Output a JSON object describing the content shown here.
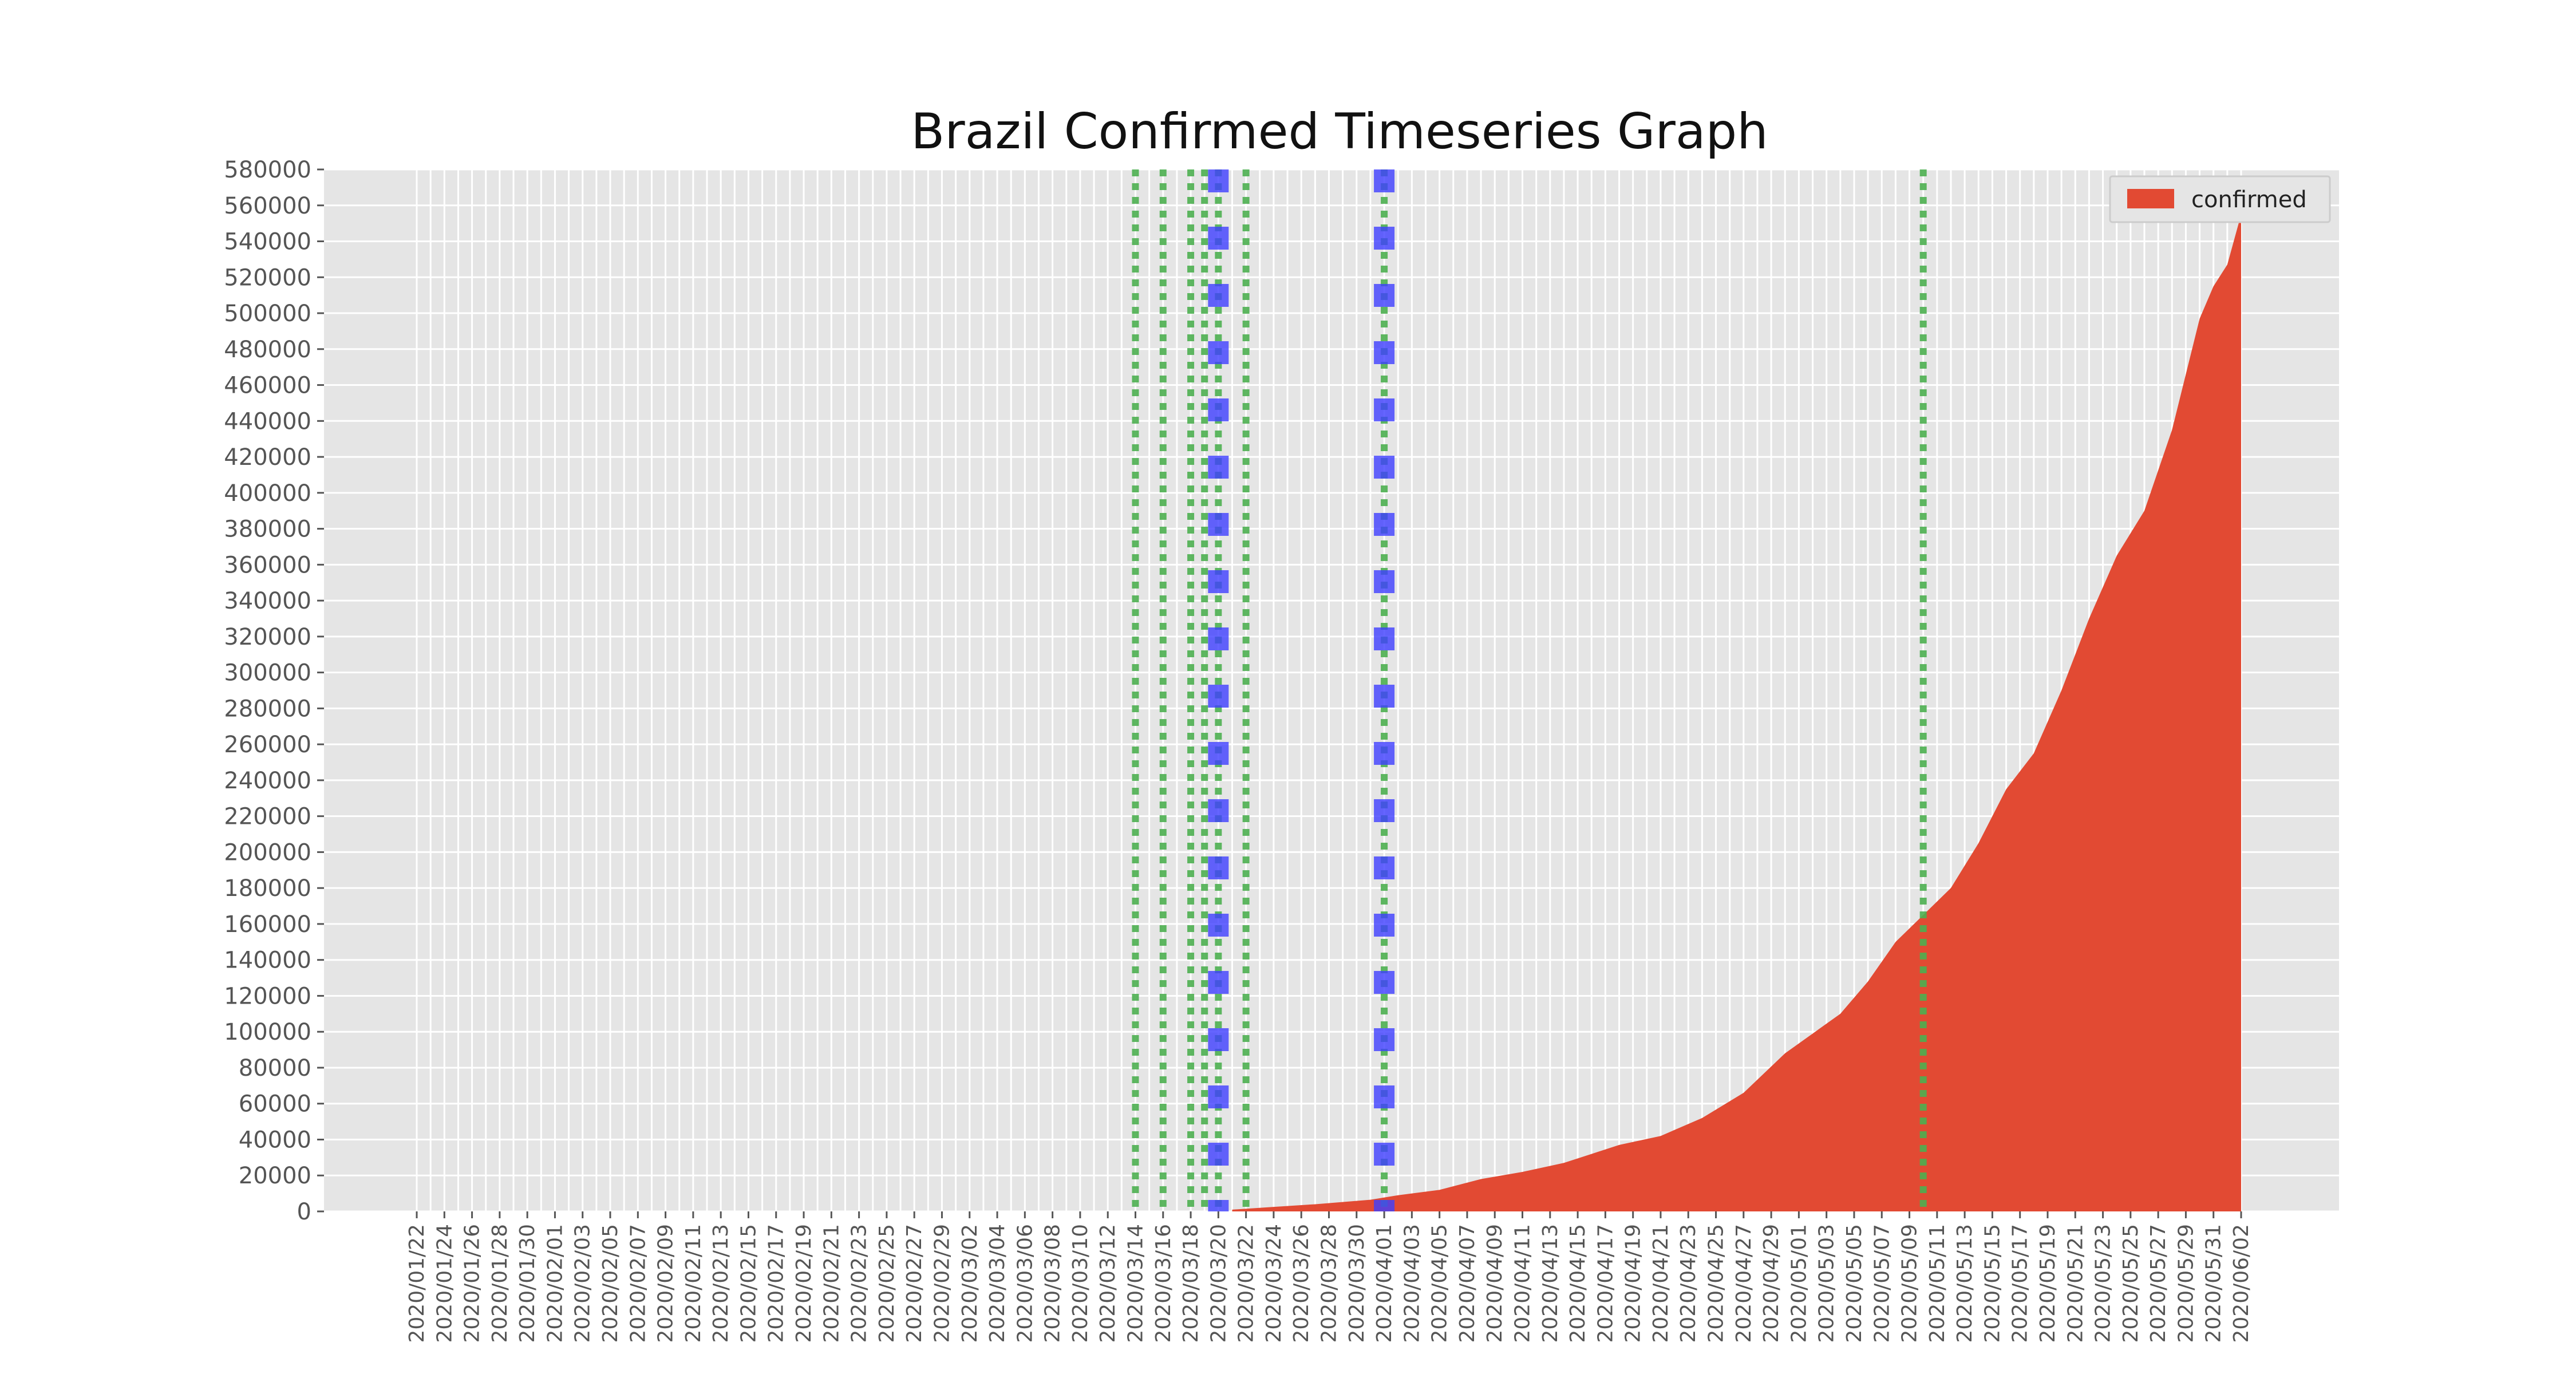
{
  "chart_data": {
    "type": "area",
    "title": "Brazil Confirmed Timeseries Graph",
    "xlabel": "",
    "ylabel": "",
    "ylim": [
      0,
      580000
    ],
    "y_ticks": [
      0,
      20000,
      40000,
      60000,
      80000,
      100000,
      120000,
      140000,
      160000,
      180000,
      200000,
      220000,
      240000,
      260000,
      280000,
      300000,
      320000,
      340000,
      360000,
      380000,
      400000,
      420000,
      440000,
      460000,
      480000,
      500000,
      520000,
      540000,
      560000,
      580000
    ],
    "x_range": [
      "2020/01/22",
      "2020/06/02"
    ],
    "x_tick_labels": [
      "2020/01/22",
      "2020/01/24",
      "2020/01/26",
      "2020/01/28",
      "2020/01/30",
      "2020/02/01",
      "2020/02/03",
      "2020/02/05",
      "2020/02/07",
      "2020/02/09",
      "2020/02/11",
      "2020/02/13",
      "2020/02/15",
      "2020/02/17",
      "2020/02/19",
      "2020/02/21",
      "2020/02/23",
      "2020/02/25",
      "2020/02/27",
      "2020/02/29",
      "2020/03/02",
      "2020/03/04",
      "2020/03/06",
      "2020/03/08",
      "2020/03/10",
      "2020/03/12",
      "2020/03/14",
      "2020/03/16",
      "2020/03/18",
      "2020/03/20",
      "2020/03/22",
      "2020/03/24",
      "2020/03/26",
      "2020/03/28",
      "2020/03/30",
      "2020/04/01",
      "2020/04/03",
      "2020/04/05",
      "2020/04/07",
      "2020/04/09",
      "2020/04/11",
      "2020/04/13",
      "2020/04/15",
      "2020/04/17",
      "2020/04/19",
      "2020/04/21",
      "2020/04/23",
      "2020/04/25",
      "2020/04/27",
      "2020/04/29",
      "2020/05/01",
      "2020/05/03",
      "2020/05/05",
      "2020/05/07",
      "2020/05/09",
      "2020/05/11",
      "2020/05/13",
      "2020/05/15",
      "2020/05/17",
      "2020/05/19",
      "2020/05/21",
      "2020/05/23",
      "2020/05/25",
      "2020/05/27",
      "2020/05/29",
      "2020/05/31",
      "2020/06/02"
    ],
    "grid": true,
    "legend": "top-right",
    "series": [
      {
        "name": "confirmed",
        "color": "#e24a33",
        "x": [
          "2020/03/21",
          "2020/03/24",
          "2020/03/27",
          "2020/03/31",
          "2020/04/02",
          "2020/04/05",
          "2020/04/08",
          "2020/04/11",
          "2020/04/14",
          "2020/04/16",
          "2020/04/18",
          "2020/04/21",
          "2020/04/24",
          "2020/04/27",
          "2020/04/30",
          "2020/05/04",
          "2020/05/06",
          "2020/05/08",
          "2020/05/10",
          "2020/05/12",
          "2020/05/14",
          "2020/05/16",
          "2020/05/18",
          "2020/05/20",
          "2020/05/22",
          "2020/05/24",
          "2020/05/26",
          "2020/05/28",
          "2020/05/30",
          "2020/05/31",
          "2020/06/01",
          "2020/06/02"
        ],
        "y": [
          1000,
          2500,
          4000,
          6500,
          9000,
          12000,
          18000,
          22000,
          27000,
          32000,
          37000,
          42000,
          52000,
          66000,
          88000,
          110000,
          128000,
          150000,
          165000,
          180000,
          205000,
          235000,
          255000,
          290000,
          330000,
          365000,
          390000,
          435000,
          497000,
          515000,
          527000,
          555000
        ]
      }
    ],
    "vertical_lines": [
      {
        "x": "2020/03/14",
        "style": "dotted",
        "color": "#4caf50"
      },
      {
        "x": "2020/03/16",
        "style": "dotted",
        "color": "#4caf50"
      },
      {
        "x": "2020/03/18",
        "style": "dotted",
        "color": "#4caf50"
      },
      {
        "x": "2020/03/19",
        "style": "dotted",
        "color": "#4caf50"
      },
      {
        "x": "2020/03/20",
        "style": "dotted",
        "color": "#4caf50"
      },
      {
        "x": "2020/03/20",
        "style": "dashed",
        "color": "#3f3fff"
      },
      {
        "x": "2020/03/22",
        "style": "dotted",
        "color": "#4caf50"
      },
      {
        "x": "2020/04/01",
        "style": "dotted",
        "color": "#4caf50"
      },
      {
        "x": "2020/04/01",
        "style": "dashed",
        "color": "#3f3fff"
      },
      {
        "x": "2020/05/10",
        "style": "dotted",
        "color": "#4caf50"
      }
    ]
  }
}
